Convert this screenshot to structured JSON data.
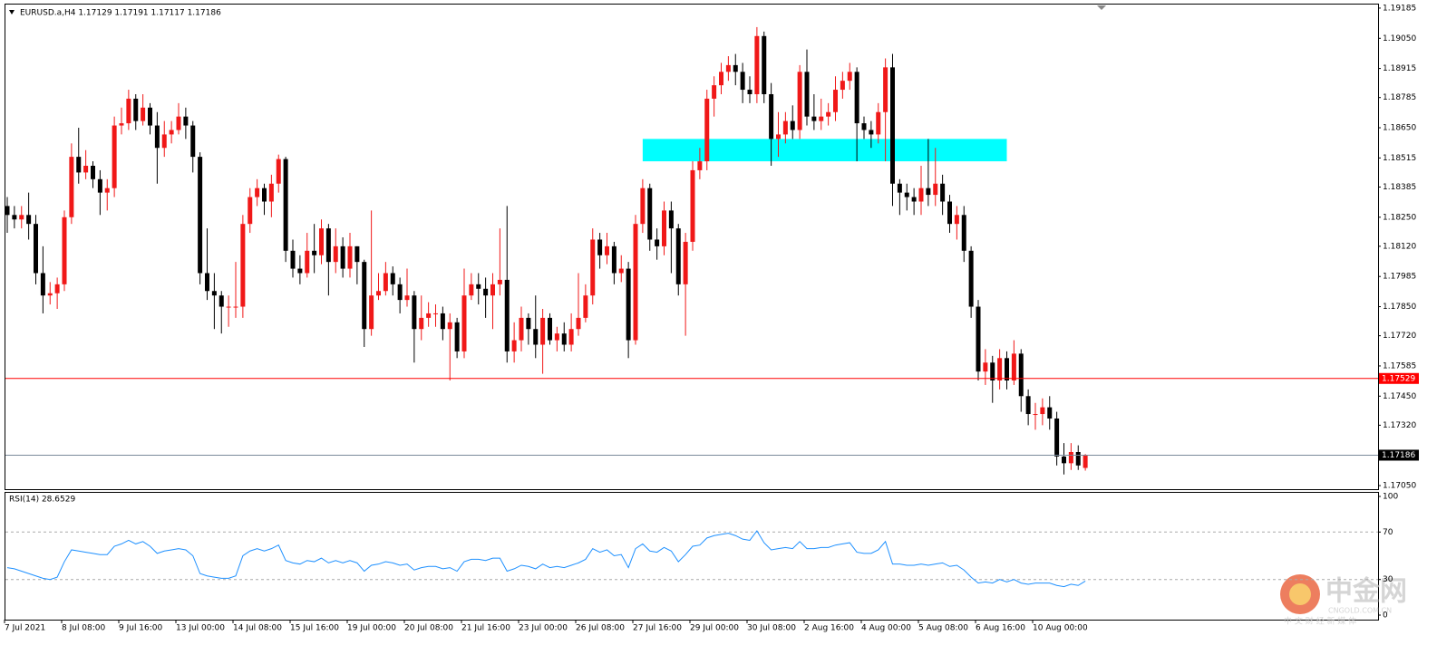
{
  "chart_data": {
    "type": "candlestick",
    "title": "EURUSD.a,H4  1.17129 1.17191 1.17117 1.17186",
    "up_color": "#f01818",
    "down_color": "#000000",
    "categories": [
      "7 Jul 2021",
      null,
      null,
      null,
      null,
      null,
      null,
      null,
      "8 Jul 08:00",
      null,
      null,
      null,
      null,
      null,
      null,
      null,
      "9 Jul 16:00",
      null,
      null,
      null,
      null,
      null,
      null,
      null,
      "13 Jul 00:00",
      null,
      null,
      null,
      null,
      null,
      null,
      null,
      "14 Jul 08:00",
      null,
      null,
      null,
      null,
      null,
      null,
      null,
      "15 Jul 16:00",
      null,
      null,
      null,
      null,
      null,
      null,
      null,
      "19 Jul 00:00",
      null,
      null,
      null,
      null,
      null,
      null,
      null,
      "20 Jul 08:00",
      null,
      null,
      null,
      null,
      null,
      null,
      null,
      "21 Jul 16:00",
      null,
      null,
      null,
      null,
      null,
      null,
      null,
      "23 Jul 00:00",
      null,
      null,
      null,
      null,
      null,
      null,
      null,
      "26 Jul 08:00",
      null,
      null,
      null,
      null,
      null,
      null,
      null,
      "27 Jul 16:00",
      null,
      null,
      null,
      null,
      null,
      null,
      null,
      "29 Jul 00:00",
      null,
      null,
      null,
      null,
      null,
      null,
      null,
      "30 Jul 08:00",
      null,
      null,
      null,
      null,
      null,
      null,
      null,
      "2 Aug 16:00",
      null,
      null,
      null,
      null,
      null,
      null,
      null,
      "4 Aug 00:00",
      null,
      null,
      null,
      null,
      null,
      null,
      null,
      "5 Aug 08:00",
      null,
      null,
      null,
      null,
      null,
      null,
      null,
      "6 Aug 16:00",
      null,
      null,
      null,
      null,
      null,
      null,
      null,
      "10 Aug 00:00",
      null,
      null,
      null,
      null,
      null,
      null,
      null
    ],
    "open": [
      1.183,
      1.1826,
      1.1824,
      1.1826,
      1.1822,
      1.18,
      1.179,
      1.1791,
      1.1795,
      1.1825,
      1.1852,
      1.1845,
      1.1848,
      1.1842,
      1.1836,
      1.1838,
      1.1866,
      1.1867,
      1.1878,
      1.1868,
      1.1874,
      1.1866,
      1.1856,
      1.1862,
      1.1864,
      1.187,
      1.1866,
      1.1852,
      1.18,
      1.1792,
      1.179,
      1.1785,
      1.1785,
      1.1785,
      1.1822,
      1.1834,
      1.1838,
      1.1832,
      1.184,
      1.1851,
      1.181,
      1.1802,
      1.18,
      1.181,
      1.1808,
      1.182,
      1.1805,
      1.1812,
      1.1802,
      1.1812,
      1.1805,
      1.1775,
      1.179,
      1.1792,
      1.18,
      1.1795,
      1.1788,
      1.179,
      1.1775,
      1.178,
      1.1782,
      1.1782,
      1.1775,
      1.1778,
      1.1765,
      1.179,
      1.1795,
      1.1793,
      1.179,
      1.1795,
      1.1797,
      1.1765,
      1.177,
      1.178,
      1.1775,
      1.1768,
      1.178,
      1.177,
      1.1773,
      1.1768,
      1.1775,
      1.178,
      1.179,
      1.1815,
      1.1808,
      1.1812,
      1.18,
      1.1802,
      1.177,
      1.1822,
      1.1838,
      1.1815,
      1.1812,
      1.1828,
      1.182,
      1.1795,
      1.1814,
      1.1846,
      1.185,
      1.1878,
      1.1884,
      1.189,
      1.1893,
      1.189,
      1.1882,
      1.188,
      1.1906,
      1.188,
      1.186,
      1.1862,
      1.1868,
      1.1864,
      1.189,
      1.187,
      1.1868,
      1.187,
      1.1872,
      1.1882,
      1.1886,
      1.189,
      1.1867,
      1.1864,
      1.1862,
      1.1872,
      1.1892,
      1.184,
      1.1836,
      1.1834,
      1.1832,
      1.1838,
      1.1835,
      1.184,
      1.1832,
      1.1822,
      1.1826,
      1.181,
      1.1785,
      1.1756,
      1.176,
      1.1752,
      1.1762,
      1.1752,
      1.1764,
      1.1745,
      1.1737,
      1.1737,
      1.174,
      1.1735,
      1.1718,
      1.1715,
      1.172,
      1.17129
    ],
    "high": [
      1.1834,
      1.183,
      1.183,
      1.1836,
      1.1826,
      1.1812,
      1.1796,
      1.1798,
      1.1828,
      1.1858,
      1.1865,
      1.1855,
      1.185,
      1.1846,
      1.1842,
      1.187,
      1.1874,
      1.1882,
      1.188,
      1.188,
      1.1876,
      1.1872,
      1.1868,
      1.1868,
      1.1876,
      1.1874,
      1.1868,
      1.1854,
      1.182,
      1.18,
      1.1792,
      1.179,
      1.1805,
      1.1826,
      1.1838,
      1.1842,
      1.184,
      1.1844,
      1.1853,
      1.1852,
      1.1815,
      1.1808,
      1.1818,
      1.1822,
      1.1824,
      1.1822,
      1.182,
      1.1816,
      1.1818,
      1.1812,
      1.1806,
      1.1828,
      1.18,
      1.1805,
      1.1803,
      1.1798,
      1.1802,
      1.1792,
      1.179,
      1.1787,
      1.1786,
      1.1785,
      1.1782,
      1.178,
      1.1802,
      1.18,
      1.18,
      1.1798,
      1.18,
      1.182,
      1.183,
      1.1778,
      1.1785,
      1.1782,
      1.179,
      1.1784,
      1.1782,
      1.1776,
      1.1778,
      1.1782,
      1.18,
      1.1795,
      1.182,
      1.1818,
      1.1818,
      1.1814,
      1.1808,
      1.1805,
      1.1826,
      1.1842,
      1.184,
      1.182,
      1.1832,
      1.1832,
      1.1822,
      1.1818,
      1.185,
      1.1856,
      1.1882,
      1.1888,
      1.1894,
      1.1897,
      1.1898,
      1.1894,
      1.1888,
      1.191,
      1.1908,
      1.1885,
      1.1872,
      1.1872,
      1.1875,
      1.1893,
      1.19,
      1.188,
      1.1878,
      1.1876,
      1.1888,
      1.189,
      1.1894,
      1.1892,
      1.187,
      1.1868,
      1.1876,
      1.1896,
      1.1898,
      1.1842,
      1.184,
      1.1838,
      1.1848,
      1.186,
      1.1856,
      1.1844,
      1.1835,
      1.183,
      1.183,
      1.1812,
      1.1788,
      1.1766,
      1.1763,
      1.1766,
      1.1765,
      1.177,
      1.1766,
      1.1748,
      1.1742,
      1.1744,
      1.1745,
      1.1738,
      1.1724,
      1.1724,
      1.1723,
      1.17191
    ],
    "low": [
      1.1818,
      1.182,
      1.182,
      1.1815,
      1.1795,
      1.1782,
      1.1786,
      1.1784,
      1.1792,
      1.1822,
      1.184,
      1.1842,
      1.1838,
      1.1826,
      1.1828,
      1.1834,
      1.1862,
      1.1864,
      1.1864,
      1.1866,
      1.1862,
      1.184,
      1.1852,
      1.1858,
      1.1862,
      1.186,
      1.1845,
      1.1795,
      1.1788,
      1.1775,
      1.1773,
      1.1776,
      1.178,
      1.178,
      1.1818,
      1.183,
      1.1826,
      1.1825,
      1.1836,
      1.1805,
      1.1798,
      1.1795,
      1.1798,
      1.18,
      1.1804,
      1.179,
      1.18,
      1.1798,
      1.1798,
      1.1795,
      1.1767,
      1.1772,
      1.1788,
      1.179,
      1.179,
      1.1782,
      1.1785,
      1.176,
      1.177,
      1.1776,
      1.1776,
      1.177,
      1.1752,
      1.1762,
      1.1762,
      1.1788,
      1.1786,
      1.178,
      1.1775,
      1.179,
      1.176,
      1.176,
      1.1765,
      1.1768,
      1.1762,
      1.1755,
      1.1768,
      1.1765,
      1.1765,
      1.1765,
      1.1772,
      1.1778,
      1.1786,
      1.1802,
      1.1804,
      1.1795,
      1.1796,
      1.1762,
      1.1768,
      1.1818,
      1.181,
      1.1806,
      1.1808,
      1.18,
      1.179,
      1.1772,
      1.181,
      1.1842,
      1.1846,
      1.187,
      1.188,
      1.1886,
      1.1884,
      1.1876,
      1.1876,
      1.1876,
      1.1876,
      1.1848,
      1.1852,
      1.1858,
      1.186,
      1.186,
      1.1866,
      1.1864,
      1.1864,
      1.1866,
      1.1868,
      1.1878,
      1.1882,
      1.185,
      1.186,
      1.1856,
      1.1858,
      1.185,
      1.183,
      1.1826,
      1.1828,
      1.1826,
      1.1826,
      1.183,
      1.183,
      1.1826,
      1.1818,
      1.1815,
      1.1805,
      1.178,
      1.1752,
      1.175,
      1.1742,
      1.1748,
      1.1748,
      1.175,
      1.1738,
      1.1732,
      1.173,
      1.1732,
      1.173,
      1.1714,
      1.171,
      1.1712,
      1.1712,
      1.17117
    ],
    "close": [
      1.1826,
      1.1824,
      1.1826,
      1.1822,
      1.18,
      1.179,
      1.1791,
      1.1795,
      1.1825,
      1.1852,
      1.1845,
      1.1848,
      1.1842,
      1.1836,
      1.1838,
      1.1866,
      1.1867,
      1.1878,
      1.1868,
      1.1874,
      1.1866,
      1.1856,
      1.1862,
      1.1864,
      1.187,
      1.1866,
      1.1852,
      1.18,
      1.1792,
      1.179,
      1.1785,
      1.1785,
      1.1785,
      1.1822,
      1.1834,
      1.1838,
      1.1832,
      1.184,
      1.1851,
      1.181,
      1.1802,
      1.18,
      1.181,
      1.1808,
      1.182,
      1.1805,
      1.1812,
      1.1802,
      1.1812,
      1.1805,
      1.1775,
      1.179,
      1.1792,
      1.18,
      1.1795,
      1.1788,
      1.179,
      1.1775,
      1.178,
      1.1782,
      1.1782,
      1.1775,
      1.1778,
      1.1765,
      1.179,
      1.1795,
      1.1793,
      1.179,
      1.1795,
      1.1797,
      1.1765,
      1.177,
      1.178,
      1.1775,
      1.1768,
      1.178,
      1.177,
      1.1773,
      1.1768,
      1.1775,
      1.178,
      1.179,
      1.1815,
      1.1808,
      1.1812,
      1.18,
      1.1802,
      1.177,
      1.1822,
      1.1838,
      1.1815,
      1.1812,
      1.1828,
      1.182,
      1.1795,
      1.1814,
      1.1846,
      1.185,
      1.1878,
      1.1884,
      1.189,
      1.1893,
      1.189,
      1.1882,
      1.188,
      1.1906,
      1.188,
      1.186,
      1.1862,
      1.1868,
      1.1864,
      1.189,
      1.187,
      1.1868,
      1.187,
      1.1872,
      1.1882,
      1.1886,
      1.189,
      1.1867,
      1.1864,
      1.1862,
      1.1872,
      1.1892,
      1.184,
      1.1836,
      1.1834,
      1.1832,
      1.1838,
      1.1835,
      1.184,
      1.1832,
      1.1822,
      1.1826,
      1.181,
      1.1785,
      1.1756,
      1.176,
      1.1752,
      1.1762,
      1.1752,
      1.1764,
      1.1745,
      1.1737,
      1.1737,
      1.174,
      1.1735,
      1.1718,
      1.1715,
      1.172,
      1.1714,
      1.17186
    ],
    "ylim": [
      1.17038,
      1.19205
    ],
    "yticks": [
      1.19185,
      {
        "value": 1.1905,
        "label": "1.19050"
      },
      1.18915,
      1.18785,
      {
        "value": 1.1865,
        "label": "1.18650"
      },
      1.18515,
      1.18385,
      {
        "value": 1.1825,
        "label": "1.18250"
      },
      {
        "value": 1.1812,
        "label": "1.18120"
      },
      1.17985,
      {
        "value": 1.1785,
        "label": "1.17850"
      },
      {
        "value": 1.1772,
        "label": "1.17720"
      },
      1.17585,
      {
        "value": 1.1745,
        "label": "1.17450"
      },
      {
        "value": 1.1732,
        "label": "1.17320"
      },
      {
        "value": 1.1705,
        "label": "1.17050"
      }
    ],
    "hlines": [
      {
        "value": 1.17529,
        "color": "#ff0000"
      },
      {
        "value": 1.17186,
        "color": "#7a8a9a"
      }
    ],
    "zones": [
      {
        "start": 89,
        "end": 140,
        "from": 1.185,
        "to": 1.186,
        "color": "#00ffff"
      }
    ],
    "rsi": {
      "label": "RSI(14) 28.6529",
      "color": "#1e90ff",
      "ylim": [
        0,
        100
      ],
      "yticks": [
        100,
        70,
        30,
        0
      ],
      "levels": [
        70,
        30
      ],
      "values": [
        40,
        39,
        37,
        35,
        33,
        31,
        30,
        32,
        45,
        55,
        54,
        53,
        52,
        51,
        51,
        58,
        60,
        63,
        60,
        62,
        58,
        52,
        54,
        55,
        56,
        55,
        50,
        35,
        33,
        32,
        31,
        31,
        33,
        50,
        54,
        56,
        54,
        56,
        59,
        46,
        44,
        43,
        46,
        45,
        48,
        44,
        46,
        44,
        46,
        44,
        37,
        42,
        43,
        45,
        44,
        42,
        43,
        38,
        40,
        41,
        41,
        39,
        40,
        37,
        45,
        47,
        47,
        46,
        48,
        48,
        37,
        39,
        42,
        41,
        39,
        43,
        40,
        41,
        40,
        42,
        44,
        47,
        56,
        53,
        55,
        50,
        51,
        40,
        56,
        60,
        54,
        53,
        57,
        54,
        45,
        51,
        58,
        59,
        65,
        67,
        68,
        69,
        67,
        64,
        63,
        71,
        61,
        55,
        56,
        57,
        56,
        62,
        56,
        56,
        57,
        57,
        59,
        60,
        61,
        53,
        52,
        52,
        55,
        62,
        43,
        43,
        42,
        42,
        43,
        42,
        43,
        44,
        41,
        42,
        38,
        32,
        27,
        28,
        27,
        30,
        28,
        30,
        27,
        26,
        27,
        27,
        27,
        25,
        24,
        26,
        25,
        28.6529
      ]
    },
    "watermark": {
      "name": "中金网",
      "site": "CNGOLD.COM.CN",
      "slogan": "中 文 财 经 新 媒 体"
    }
  }
}
